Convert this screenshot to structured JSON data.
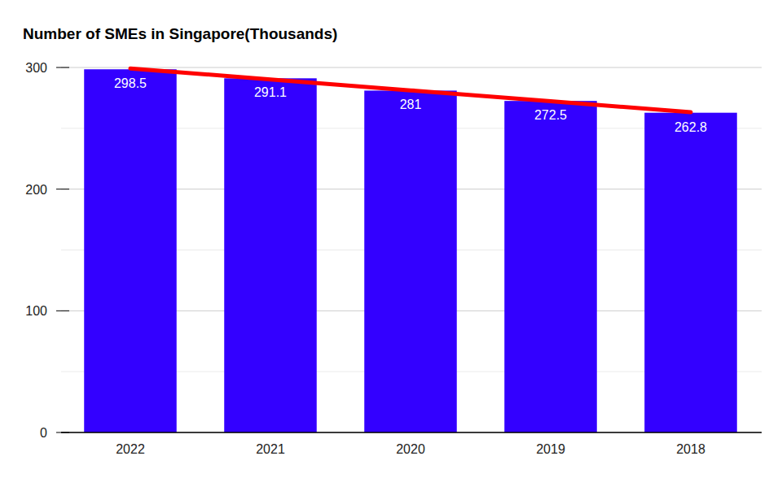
{
  "chart_data": {
    "type": "bar",
    "title": "Number of SMEs in Singapore(Thousands)",
    "categories": [
      "2022",
      "2021",
      "2020",
      "2019",
      "2018"
    ],
    "series": [
      {
        "type": "bar",
        "color": "#3300ff",
        "values": [
          298.5,
          291.1,
          281,
          272.5,
          262.8
        ]
      },
      {
        "type": "line",
        "color": "#ff0000",
        "values": [
          299.2,
          290.2,
          281.2,
          272.2,
          263.2
        ]
      }
    ],
    "ylim": [
      0,
      300
    ],
    "yticks": [
      0,
      100,
      200,
      300
    ],
    "grid": true,
    "data_labels": true
  }
}
